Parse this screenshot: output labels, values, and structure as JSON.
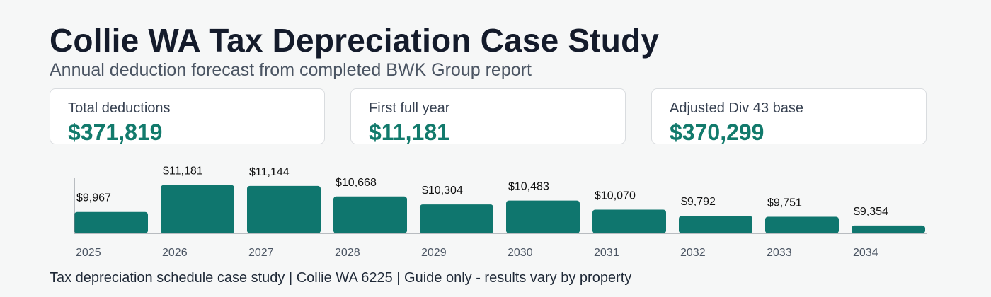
{
  "header": {
    "title": "Collie WA Tax Depreciation Case Study",
    "subtitle": "Annual deduction forecast from completed BWK Group report"
  },
  "cards": [
    {
      "label": "Total deductions",
      "value": "$371,819"
    },
    {
      "label": "First full year",
      "value": "$11,181"
    },
    {
      "label": "Adjusted Div 43 base",
      "value": "$370,299"
    }
  ],
  "footer": "Tax depreciation schedule case study | Collie WA 6225 | Guide only - results vary by property",
  "colors": {
    "bar": "#0f766e",
    "accent": "#127a6c",
    "title": "#141b2b"
  },
  "chart_data": {
    "type": "bar",
    "categories": [
      "2025",
      "2026",
      "2027",
      "2028",
      "2029",
      "2030",
      "2031",
      "2032",
      "2033",
      "2034"
    ],
    "values": [
      9967,
      11181,
      11144,
      10668,
      10304,
      10483,
      10070,
      9792,
      9751,
      9354
    ],
    "data_labels": [
      "$9,967",
      "$11,181",
      "$11,144",
      "$10,668",
      "$10,304",
      "$10,483",
      "$10,070",
      "$9,792",
      "$9,751",
      "$9,354"
    ],
    "title": "",
    "xlabel": "",
    "ylabel": "",
    "ylim": [
      9000,
      11300
    ],
    "grid": false,
    "legend": "none"
  }
}
